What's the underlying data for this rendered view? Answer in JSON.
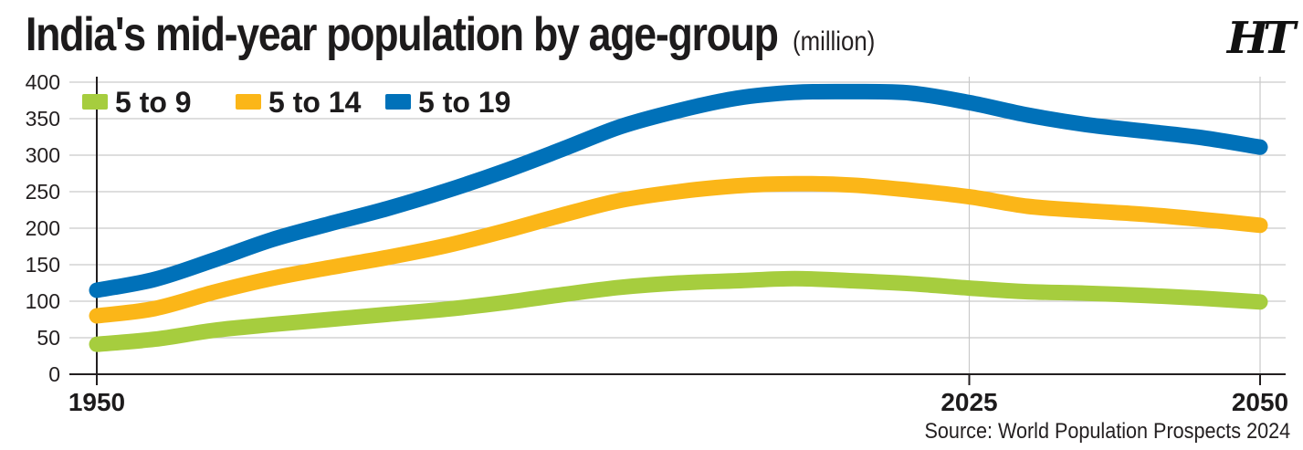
{
  "header": {
    "title": "India's mid-year population by age-group",
    "unit": "(million)",
    "logo": "HT"
  },
  "footer": {
    "source": "Source: World Population Prospects 2024"
  },
  "colors": {
    "series_5_9": "#a6cd3e",
    "series_5_14": "#fbb618",
    "series_5_19": "#0071b9",
    "grid": "#c9c9c9",
    "axis": "#231f20"
  },
  "chart_data": {
    "type": "line",
    "title": "India's mid-year population by age-group",
    "ylabel": "",
    "xlabel": "",
    "xlim": [
      1950,
      2050
    ],
    "ylim": [
      0,
      400
    ],
    "y_ticks": [
      0,
      50,
      100,
      150,
      200,
      250,
      300,
      350,
      400
    ],
    "x_ticks": [
      1950,
      2025,
      2050
    ],
    "grid": true,
    "legend_position": "top-left",
    "x": [
      1950,
      1955,
      1960,
      1965,
      1970,
      1975,
      1980,
      1985,
      1990,
      1995,
      2000,
      2005,
      2010,
      2015,
      2020,
      2025,
      2030,
      2035,
      2040,
      2045,
      2050
    ],
    "series": [
      {
        "name": "5 to 9",
        "color": "#a6cd3e",
        "values": [
          41,
          48,
          60,
          68,
          75,
          82,
          89,
          98,
          109,
          119,
          125,
          128,
          131,
          128,
          124,
          118,
          113,
          111,
          108,
          104,
          99
        ]
      },
      {
        "name": "5 to 14",
        "color": "#fbb618",
        "values": [
          80,
          90,
          112,
          131,
          146,
          160,
          176,
          196,
          218,
          238,
          250,
          258,
          261,
          259,
          252,
          243,
          230,
          224,
          219,
          212,
          204
        ]
      },
      {
        "name": "5 to 19",
        "color": "#0071b9",
        "values": [
          115,
          130,
          156,
          184,
          206,
          227,
          251,
          278,
          308,
          339,
          361,
          378,
          386,
          387,
          385,
          372,
          355,
          342,
          333,
          324,
          311
        ]
      }
    ]
  }
}
